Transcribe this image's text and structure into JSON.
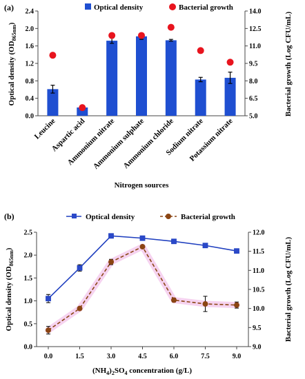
{
  "chart_data": [
    {
      "panel_label": "(a)",
      "type": "bar",
      "xlabel": "Nitrogen sources",
      "categories": [
        "Leucine",
        "Aspartic acid",
        "Ammonium nitrate",
        "Ammonium sulphate",
        "Ammonium chloride",
        "Sodium nitrate",
        "Potassium nitrate"
      ],
      "ylabel": "Optical density (OD",
      "ylabel_sub": "865nm",
      "ylabel_close": ")",
      "y2label": "Bacterial growth (Log CFU/mL)",
      "ylim": [
        0,
        2.4
      ],
      "yticks": [
        "0.0",
        "0.4",
        "0.8",
        "1.2",
        "1.6",
        "2.0",
        "2.4"
      ],
      "y2lim": [
        5.0,
        14.0
      ],
      "y2ticks": [
        "5.0",
        "6.5",
        "8.0",
        "9.5",
        "11.0",
        "12.5",
        "14.0"
      ],
      "legend_position": "top",
      "series": [
        {
          "name": "Optical density",
          "type": "bar",
          "axis": "left",
          "color": "#1f4fd1",
          "values": [
            0.61,
            0.19,
            1.72,
            1.82,
            1.73,
            0.83,
            0.87
          ],
          "errors": [
            0.09,
            0.03,
            0.06,
            0.07,
            0.02,
            0.05,
            0.13
          ]
        },
        {
          "name": "Bacterial growth",
          "type": "scatter",
          "axis": "right",
          "color": "#e8141e",
          "values": [
            10.2,
            5.7,
            11.9,
            11.9,
            12.6,
            10.6,
            9.6
          ]
        }
      ]
    },
    {
      "panel_label": "(b)",
      "type": "line",
      "xlabel_parts": [
        "(NH",
        "4",
        ")",
        "2",
        "SO",
        "4",
        " concentration (g/L)"
      ],
      "x": [
        0.0,
        1.5,
        3.0,
        4.5,
        6.0,
        7.5,
        9.0
      ],
      "xticks": [
        "0.0",
        "1.5",
        "3.0",
        "4.5",
        "6.0",
        "7.5",
        "9.0"
      ],
      "xlim": [
        0,
        9
      ],
      "ylabel": "Optical density (OD",
      "ylabel_sub": "865nm",
      "ylabel_close": ")",
      "y2label": "Bacterial growth (Log CFU/mL)",
      "ylim": [
        0,
        2.5
      ],
      "yticks": [
        "0.0",
        "0.5",
        "1.0",
        "1.5",
        "2.0",
        "2.5"
      ],
      "y2lim": [
        9.0,
        12.0
      ],
      "y2ticks": [
        "9.0",
        "9.5",
        "10.0",
        "10.5",
        "11.0",
        "11.5",
        "12.0"
      ],
      "legend_position": "top",
      "series": [
        {
          "name": "Optical density",
          "axis": "left",
          "color": "#1f3fbf",
          "marker": "square",
          "line": "solid",
          "values": [
            1.05,
            1.72,
            2.42,
            2.37,
            2.3,
            2.21,
            2.09
          ],
          "errors": [
            0.09,
            0.07,
            0.02,
            0.02,
            0.02,
            0.02,
            0.02
          ]
        },
        {
          "name": "Bacterial growth",
          "axis": "right",
          "color": "#8b4513",
          "marker": "circle",
          "line": "dashed",
          "values": [
            9.43,
            10.0,
            11.22,
            11.62,
            10.22,
            10.12,
            10.09
          ],
          "errors": [
            0.1,
            0.04,
            0.07,
            0.04,
            0.05,
            0.2,
            0.08
          ]
        }
      ]
    }
  ]
}
